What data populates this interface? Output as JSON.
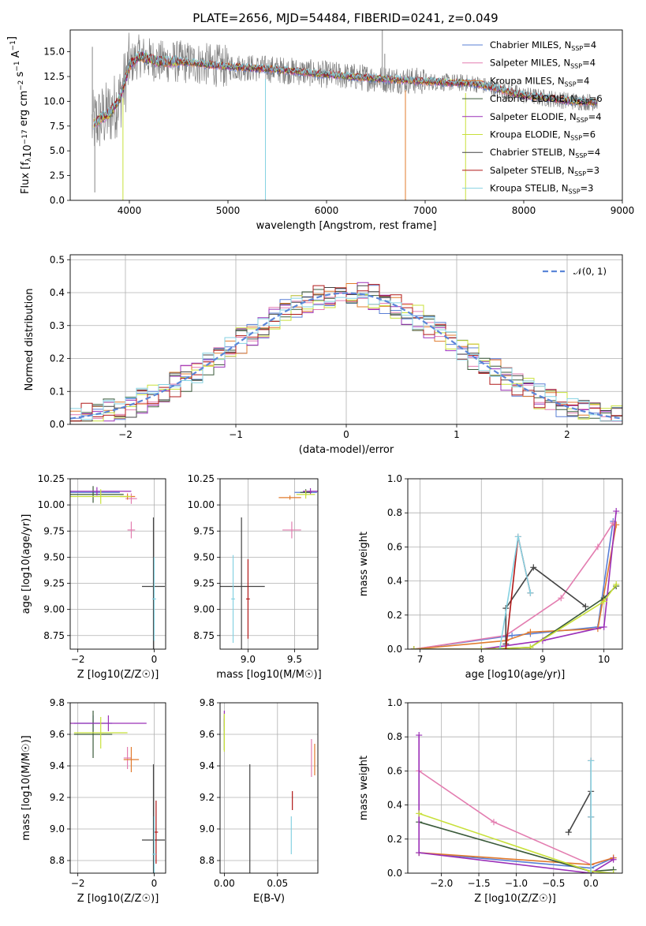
{
  "figure": {
    "title": "PLATE=2656, MJD=54484, FIBERID=0241, z=0.049",
    "colors": {
      "Chabrier MILES": "#5a7fd6",
      "Salpeter MILES": "#e37db0",
      "Kroupa MILES": "#e07b2e",
      "Chabrier ELODIE": "#3a5a3a",
      "Salpeter ELODIE": "#9b30b8",
      "Kroupa ELODIE": "#c8e03a",
      "Chabrier STELIB": "#444444",
      "Salpeter STELIB": "#b01818",
      "Kroupa STELIB": "#86d2e2",
      "data": "#808080"
    }
  },
  "chart_data": [
    {
      "id": "spectrum",
      "type": "line",
      "title": "PLATE=2656, MJD=54484, FIBERID=0241, z=0.049",
      "xlabel": "wavelength [Angstrom, rest frame]",
      "ylabel": "Flux [f_λ 10^-17 erg cm^-2 s^-1 A^-1]",
      "xlim": [
        3400,
        9000
      ],
      "ylim": [
        0,
        17.2
      ],
      "xticks": [
        4000,
        5000,
        6000,
        7000,
        8000,
        9000
      ],
      "yticks": [
        "0.0",
        "2.5",
        "5.0",
        "7.5",
        "10.0",
        "12.5",
        "15.0"
      ],
      "legend_position": "top-right",
      "legend": [
        "Chabrier MILES, N_SSP=4",
        "Salpeter MILES, N_SSP=4",
        "Kroupa MILES, N_SSP=4",
        "Chabrier ELODIE, N_SSP=6",
        "Salpeter ELODIE, N_SSP=4",
        "Kroupa ELODIE, N_SSP=6",
        "Chabrier STELIB, N_SSP=4",
        "Salpeter STELIB, N_SSP=3",
        "Kroupa STELIB, N_SSP=3"
      ],
      "continuum": {
        "x": [
          3620,
          3700,
          3800,
          3900,
          3950,
          4000,
          4100,
          4200,
          4300,
          4500,
          5000,
          5500,
          6000,
          6500,
          7000,
          7500,
          8000,
          8500,
          8750
        ],
        "y": [
          7.6,
          8.2,
          8.8,
          10.2,
          11.8,
          13.6,
          14.6,
          14.3,
          14.0,
          14.0,
          13.5,
          13.2,
          12.7,
          12.3,
          12.0,
          11.8,
          10.6,
          10.0,
          9.9
        ]
      },
      "model_spikes": [
        {
          "x": 3935,
          "y": 0
        },
        {
          "x": 5380,
          "y": 0
        },
        {
          "x": 6800,
          "y": 0
        },
        {
          "x": 7410,
          "y": 0
        }
      ],
      "data_spikes": [
        {
          "x": 3625,
          "y": 15.5
        },
        {
          "x": 3650,
          "y": 0.8
        },
        {
          "x": 6565,
          "y": 17.2
        },
        {
          "x": 6590,
          "y": 14.8
        }
      ]
    },
    {
      "id": "residuals",
      "type": "line",
      "xlabel": "(data-model)/error",
      "ylabel": "Normed distribution",
      "xlim": [
        -2.5,
        2.5
      ],
      "ylim": [
        0,
        0.515
      ],
      "xticks": [
        -2,
        -1,
        0,
        1,
        2
      ],
      "yticks": [
        "0.0",
        "0.1",
        "0.2",
        "0.3",
        "0.4",
        "0.5"
      ],
      "legend": [
        "𝒩(0, 1)"
      ],
      "legend_position": "top-right",
      "gaussian": {
        "mu": 0,
        "sigma": 1
      },
      "bin_width": 0.1
    },
    {
      "id": "age_vs_Z",
      "type": "scatter",
      "xlabel": "Z [log10(Z/Z☉)]",
      "ylabel": "age [log10(age/yr)]",
      "xlim": [
        -2.2,
        0.3
      ],
      "ylim": [
        8.62,
        10.25
      ],
      "xticks": [
        "-2",
        "0"
      ],
      "yticks": [
        "8.75",
        "9.00",
        "9.25",
        "9.50",
        "9.75",
        "10.00",
        "10.25"
      ],
      "points": [
        {
          "model": "Chabrier MILES",
          "x": -1.6,
          "y": 10.12,
          "xerr": 0.7,
          "yerr": 0.02
        },
        {
          "model": "Salpeter MILES",
          "x": -0.6,
          "y": 10.06,
          "xerr": 0.15,
          "yerr": 0.05
        },
        {
          "model": "Salpeter MILES",
          "x": -0.6,
          "y": 9.76,
          "xerr": 0.1,
          "yerr": 0.08
        },
        {
          "model": "Kroupa MILES",
          "x": -0.7,
          "y": 10.08,
          "xerr": 0.2,
          "yerr": 0.03
        },
        {
          "model": "Chabrier ELODIE",
          "x": -1.6,
          "y": 10.1,
          "xerr": 0.8,
          "yerr": 0.08
        },
        {
          "model": "Salpeter ELODIE",
          "x": -1.5,
          "y": 10.13,
          "xerr": 0.9,
          "yerr": 0.04
        },
        {
          "model": "Kroupa ELODIE",
          "x": -1.4,
          "y": 10.08,
          "xerr": 0.8,
          "yerr": 0.07
        },
        {
          "model": "Chabrier STELIB",
          "x": -0.02,
          "y": 9.22,
          "xerr": 0.3,
          "yerr": 0.66
        },
        {
          "model": "Kroupa STELIB",
          "x": 0.0,
          "y": 9.1,
          "xerr": 0.05,
          "yerr": 0.4
        }
      ]
    },
    {
      "id": "age_vs_mass",
      "type": "scatter",
      "xlabel": "mass [log10(M/M☉)]",
      "ylabel": "",
      "xlim": [
        8.7,
        9.75
      ],
      "ylim": [
        8.62,
        10.25
      ],
      "xticks": [
        "9.0",
        "9.5"
      ],
      "yticks": [
        "8.75",
        "9.00",
        "9.25",
        "9.50",
        "9.75",
        "10.00",
        "10.25"
      ],
      "points": [
        {
          "model": "Chabrier MILES",
          "x": 9.62,
          "y": 10.12,
          "xerr": 0.12,
          "yerr": 0.02
        },
        {
          "model": "Salpeter MILES",
          "x": 9.47,
          "y": 9.76,
          "xerr": 0.1,
          "yerr": 0.08
        },
        {
          "model": "Kroupa MILES",
          "x": 9.45,
          "y": 10.07,
          "xerr": 0.12,
          "yerr": 0.02
        },
        {
          "model": "Chabrier ELODIE",
          "x": 9.62,
          "y": 10.12,
          "xerr": 0.06,
          "yerr": 0.03
        },
        {
          "model": "Salpeter ELODIE",
          "x": 9.67,
          "y": 10.13,
          "xerr": 0.08,
          "yerr": 0.03
        },
        {
          "model": "Kroupa ELODIE",
          "x": 9.62,
          "y": 10.1,
          "xerr": 0.1,
          "yerr": 0.04
        },
        {
          "model": "Chabrier STELIB",
          "x": 8.93,
          "y": 9.22,
          "xerr": 0.25,
          "yerr": 0.66
        },
        {
          "model": "Salpeter STELIB",
          "x": 9.0,
          "y": 9.1,
          "xerr": 0.02,
          "yerr": 0.38
        },
        {
          "model": "Kroupa STELIB",
          "x": 8.84,
          "y": 9.1,
          "xerr": 0.02,
          "yerr": 0.42
        }
      ]
    },
    {
      "id": "mass_weight_vs_age",
      "type": "line",
      "xlabel": "age [log10(age/yr)]",
      "ylabel": "mass weight",
      "xlim": [
        6.8,
        10.3
      ],
      "ylim": [
        0,
        1
      ],
      "xticks": [
        "7",
        "8",
        "9",
        "10"
      ],
      "yticks": [
        "0.0",
        "0.2",
        "0.4",
        "0.6",
        "0.8",
        "1.0"
      ],
      "series": [
        {
          "model": "Chabrier MILES",
          "x": [
            6.9,
            8.5,
            8.8,
            9.9,
            10.15
          ],
          "y": [
            0.0,
            0.08,
            0.09,
            0.13,
            0.75
          ]
        },
        {
          "model": "Salpeter MILES",
          "x": [
            6.9,
            8.4,
            9.3,
            9.9,
            10.15
          ],
          "y": [
            0.0,
            0.08,
            0.3,
            0.6,
            0.74
          ]
        },
        {
          "model": "Kroupa MILES",
          "x": [
            6.9,
            8.4,
            8.8,
            9.9,
            10.2
          ],
          "y": [
            0.0,
            0.05,
            0.1,
            0.12,
            0.73
          ]
        },
        {
          "model": "Chabrier ELODIE",
          "x": [
            6.9,
            8.0,
            8.8,
            10.0,
            10.2
          ],
          "y": [
            0.0,
            0.0,
            0.01,
            0.3,
            0.37
          ]
        },
        {
          "model": "Salpeter ELODIE",
          "x": [
            6.9,
            8.0,
            9.0,
            10.0,
            10.2
          ],
          "y": [
            0.0,
            0.0,
            0.05,
            0.13,
            0.81
          ]
        },
        {
          "model": "Kroupa ELODIE",
          "x": [
            6.9,
            8.0,
            8.8,
            10.0,
            10.2
          ],
          "y": [
            0.0,
            0.0,
            0.01,
            0.28,
            0.38
          ]
        },
        {
          "model": "Chabrier STELIB",
          "x": [
            8.4,
            8.4,
            8.85,
            9.7
          ],
          "y": [
            0.03,
            0.24,
            0.48,
            0.25
          ]
        },
        {
          "model": "Salpeter STELIB",
          "x": [
            8.4,
            8.6,
            8.8
          ],
          "y": [
            0.0,
            0.66,
            0.33
          ]
        },
        {
          "model": "Kroupa STELIB",
          "x": [
            8.3,
            8.6,
            8.8
          ],
          "y": [
            0.0,
            0.66,
            0.33
          ]
        }
      ]
    },
    {
      "id": "mass_vs_Z",
      "type": "scatter",
      "xlabel": "Z [log10(Z/Z☉)]",
      "ylabel": "mass [log10(M/M☉)]",
      "xlim": [
        -2.2,
        0.3
      ],
      "ylim": [
        8.72,
        9.8
      ],
      "xticks": [
        "-2",
        "0"
      ],
      "yticks": [
        "8.8",
        "9.0",
        "9.2",
        "9.4",
        "9.6",
        "9.8"
      ],
      "points": [
        {
          "model": "Chabrier MILES",
          "x": -1.6,
          "y": 9.67,
          "xerr": 0.5,
          "yerr": 0.05
        },
        {
          "model": "Salpeter MILES",
          "x": -0.7,
          "y": 9.45,
          "xerr": 0.1,
          "yerr": 0.07
        },
        {
          "model": "Kroupa MILES",
          "x": -0.6,
          "y": 9.44,
          "xerr": 0.2,
          "yerr": 0.08
        },
        {
          "model": "Chabrier ELODIE",
          "x": -1.6,
          "y": 9.6,
          "xerr": 0.5,
          "yerr": 0.15
        },
        {
          "model": "Salpeter ELODIE",
          "x": -1.2,
          "y": 9.67,
          "xerr": 1.0,
          "yerr": 0.05
        },
        {
          "model": "Kroupa ELODIE",
          "x": -1.4,
          "y": 9.61,
          "xerr": 0.7,
          "yerr": 0.1
        },
        {
          "model": "Chabrier STELIB",
          "x": -0.02,
          "y": 8.93,
          "xerr": 0.3,
          "yerr": 0.48
        },
        {
          "model": "Salpeter STELIB",
          "x": 0.05,
          "y": 8.98,
          "xerr": 0.05,
          "yerr": 0.2
        },
        {
          "model": "Kroupa STELIB",
          "x": 0.0,
          "y": 8.84,
          "xerr": 0.05,
          "yerr": 0.24
        }
      ]
    },
    {
      "id": "mass_vs_ebv",
      "type": "scatter",
      "xlabel": "E(B-V)",
      "ylabel": "",
      "xlim": [
        -0.004,
        0.088
      ],
      "ylim": [
        8.72,
        9.8
      ],
      "xticks": [
        "0.00",
        "0.05"
      ],
      "yticks": [
        "8.8",
        "9.0",
        "9.2",
        "9.4",
        "9.6",
        "9.8"
      ],
      "points": [
        {
          "model": "Chabrier MILES",
          "x": 0.0,
          "y": 9.67,
          "xerr": 0,
          "yerr": 0.05
        },
        {
          "model": "Salpeter MILES",
          "x": 0.082,
          "y": 9.45,
          "xerr": 0,
          "yerr": 0.12
        },
        {
          "model": "Kroupa MILES",
          "x": 0.085,
          "y": 9.44,
          "xerr": 0,
          "yerr": 0.1
        },
        {
          "model": "Chabrier ELODIE",
          "x": 0.0,
          "y": 9.6,
          "xerr": 0,
          "yerr": 0.1
        },
        {
          "model": "Salpeter ELODIE",
          "x": 0.0,
          "y": 9.7,
          "xerr": 0,
          "yerr": 0.05
        },
        {
          "model": "Kroupa ELODIE",
          "x": 0.0,
          "y": 9.61,
          "xerr": 0,
          "yerr": 0.12
        },
        {
          "model": "Chabrier STELIB",
          "x": 0.024,
          "y": 9.0,
          "xerr": 0,
          "yerr": 0.41
        },
        {
          "model": "Salpeter STELIB",
          "x": 0.064,
          "y": 9.18,
          "xerr": 0,
          "yerr": 0.06
        },
        {
          "model": "Kroupa STELIB",
          "x": 0.063,
          "y": 8.96,
          "xerr": 0,
          "yerr": 0.12
        }
      ]
    },
    {
      "id": "mass_weight_vs_Z",
      "type": "line",
      "xlabel": "Z [log10(Z/Z☉)]",
      "ylabel": "mass weight",
      "xlim": [
        -2.45,
        0.42
      ],
      "ylim": [
        0,
        1
      ],
      "xticks": [
        "-2.0",
        "-1.5",
        "-1.0",
        "-0.5",
        "0.0"
      ],
      "yticks": [
        "0.0",
        "0.2",
        "0.4",
        "0.6",
        "0.8",
        "1.0"
      ],
      "series": [
        {
          "model": "Chabrier MILES",
          "x": [
            -2.3,
            0.0,
            0.3
          ],
          "y": [
            0.12,
            0.03,
            0.09
          ]
        },
        {
          "model": "Salpeter MILES",
          "x": [
            -2.3,
            -1.3,
            0.0,
            0.3
          ],
          "y": [
            0.6,
            0.3,
            0.05,
            0.09
          ]
        },
        {
          "model": "Kroupa MILES",
          "x": [
            -2.3,
            0.0,
            0.3
          ],
          "y": [
            0.12,
            0.05,
            0.09
          ]
        },
        {
          "model": "Chabrier ELODIE",
          "x": [
            -2.3,
            0.0,
            0.3
          ],
          "y": [
            0.3,
            0.01,
            0.02
          ]
        },
        {
          "model": "Salpeter ELODIE",
          "x": [
            -2.3,
            -2.3,
            0.0,
            0.3
          ],
          "y": [
            0.81,
            0.12,
            0.0,
            0.08
          ]
        },
        {
          "model": "Kroupa ELODIE",
          "x": [
            -2.3,
            0.0,
            0.3
          ],
          "y": [
            0.35,
            0.01,
            0.0
          ]
        },
        {
          "model": "Chabrier STELIB",
          "x": [
            -0.3,
            0.0,
            0.0
          ],
          "y": [
            0.24,
            0.48,
            0.0
          ]
        },
        {
          "model": "Salpeter STELIB",
          "x": [
            0.0,
            0.0,
            0.0
          ],
          "y": [
            0.0,
            0.66,
            0.33
          ]
        },
        {
          "model": "Kroupa STELIB",
          "x": [
            0.0,
            0.0,
            0.0
          ],
          "y": [
            0.0,
            0.66,
            0.33
          ]
        }
      ]
    }
  ]
}
